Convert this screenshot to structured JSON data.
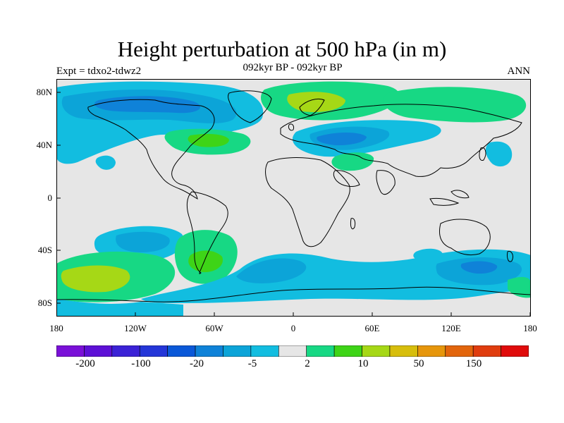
{
  "title": "Height perturbation at 500 hPa (in m)",
  "experiment": "Expt = tdxo2-tdwz2",
  "subtitle": "092kyr BP - 092kyr BP",
  "season": "ANN",
  "lat_labels": [
    "80N",
    "40N",
    "0",
    "40S",
    "80S"
  ],
  "lon_labels": [
    "180",
    "120W",
    "60W",
    "0",
    "60E",
    "120E",
    "180"
  ],
  "colorbar": {
    "colors": [
      "#7a10d8",
      "#5d10d6",
      "#3b22d6",
      "#2436d8",
      "#0a58d8",
      "#0f82d8",
      "#0ca4d8",
      "#12bde0",
      "#e6e6e6",
      "#17d884",
      "#3ed417",
      "#a6d816",
      "#d7be0c",
      "#e6960b",
      "#e2650c",
      "#e03d0f",
      "#e00b0b"
    ],
    "labels": [
      "-200",
      "-100",
      "-20",
      "-5",
      "2",
      "10",
      "50",
      "150"
    ]
  },
  "chart_data": {
    "type": "heatmap",
    "title": "Height perturbation at 500 hPa (in m)",
    "subtitle": "092kyr BP - 092kyr BP",
    "xlim": [
      -180,
      180
    ],
    "ylim": [
      -90,
      90
    ],
    "contour_levels": [
      -200,
      -150,
      -100,
      -50,
      -20,
      -10,
      -5,
      -2,
      2,
      5,
      10,
      20,
      50,
      100,
      150,
      200
    ],
    "anomalies": [
      {
        "region": "North America / Canada",
        "lon": -95,
        "lat": 68,
        "value": -10
      },
      {
        "region": "Alaska",
        "lon": -160,
        "lat": 65,
        "value": -5
      },
      {
        "region": "North Atlantic (Newfoundland)",
        "lon": -62,
        "lat": 44,
        "value": 10
      },
      {
        "region": "Greenland Sea / Scandinavia",
        "lon": 20,
        "lat": 72,
        "value": 10
      },
      {
        "region": "Eurasia (Caspian)",
        "lon": 40,
        "lat": 45,
        "value": -10
      },
      {
        "region": "East Asia",
        "lon": 135,
        "lat": 58,
        "value": 5
      },
      {
        "region": "Japan",
        "lon": 150,
        "lat": 35,
        "value": -5
      },
      {
        "region": "South Pacific",
        "lon": -120,
        "lat": -35,
        "value": -10
      },
      {
        "region": "Southeast Pacific",
        "lon": -150,
        "lat": -62,
        "value": 10
      },
      {
        "region": "South America",
        "lon": -60,
        "lat": -45,
        "value": 10
      },
      {
        "region": "South Atlantic",
        "lon": -20,
        "lat": -55,
        "value": -5
      },
      {
        "region": "South Indian Ocean",
        "lon": 145,
        "lat": -50,
        "value": -10
      },
      {
        "region": "Antarctic coast (Pacific)",
        "lon": -150,
        "lat": -78,
        "value": -5
      }
    ]
  }
}
